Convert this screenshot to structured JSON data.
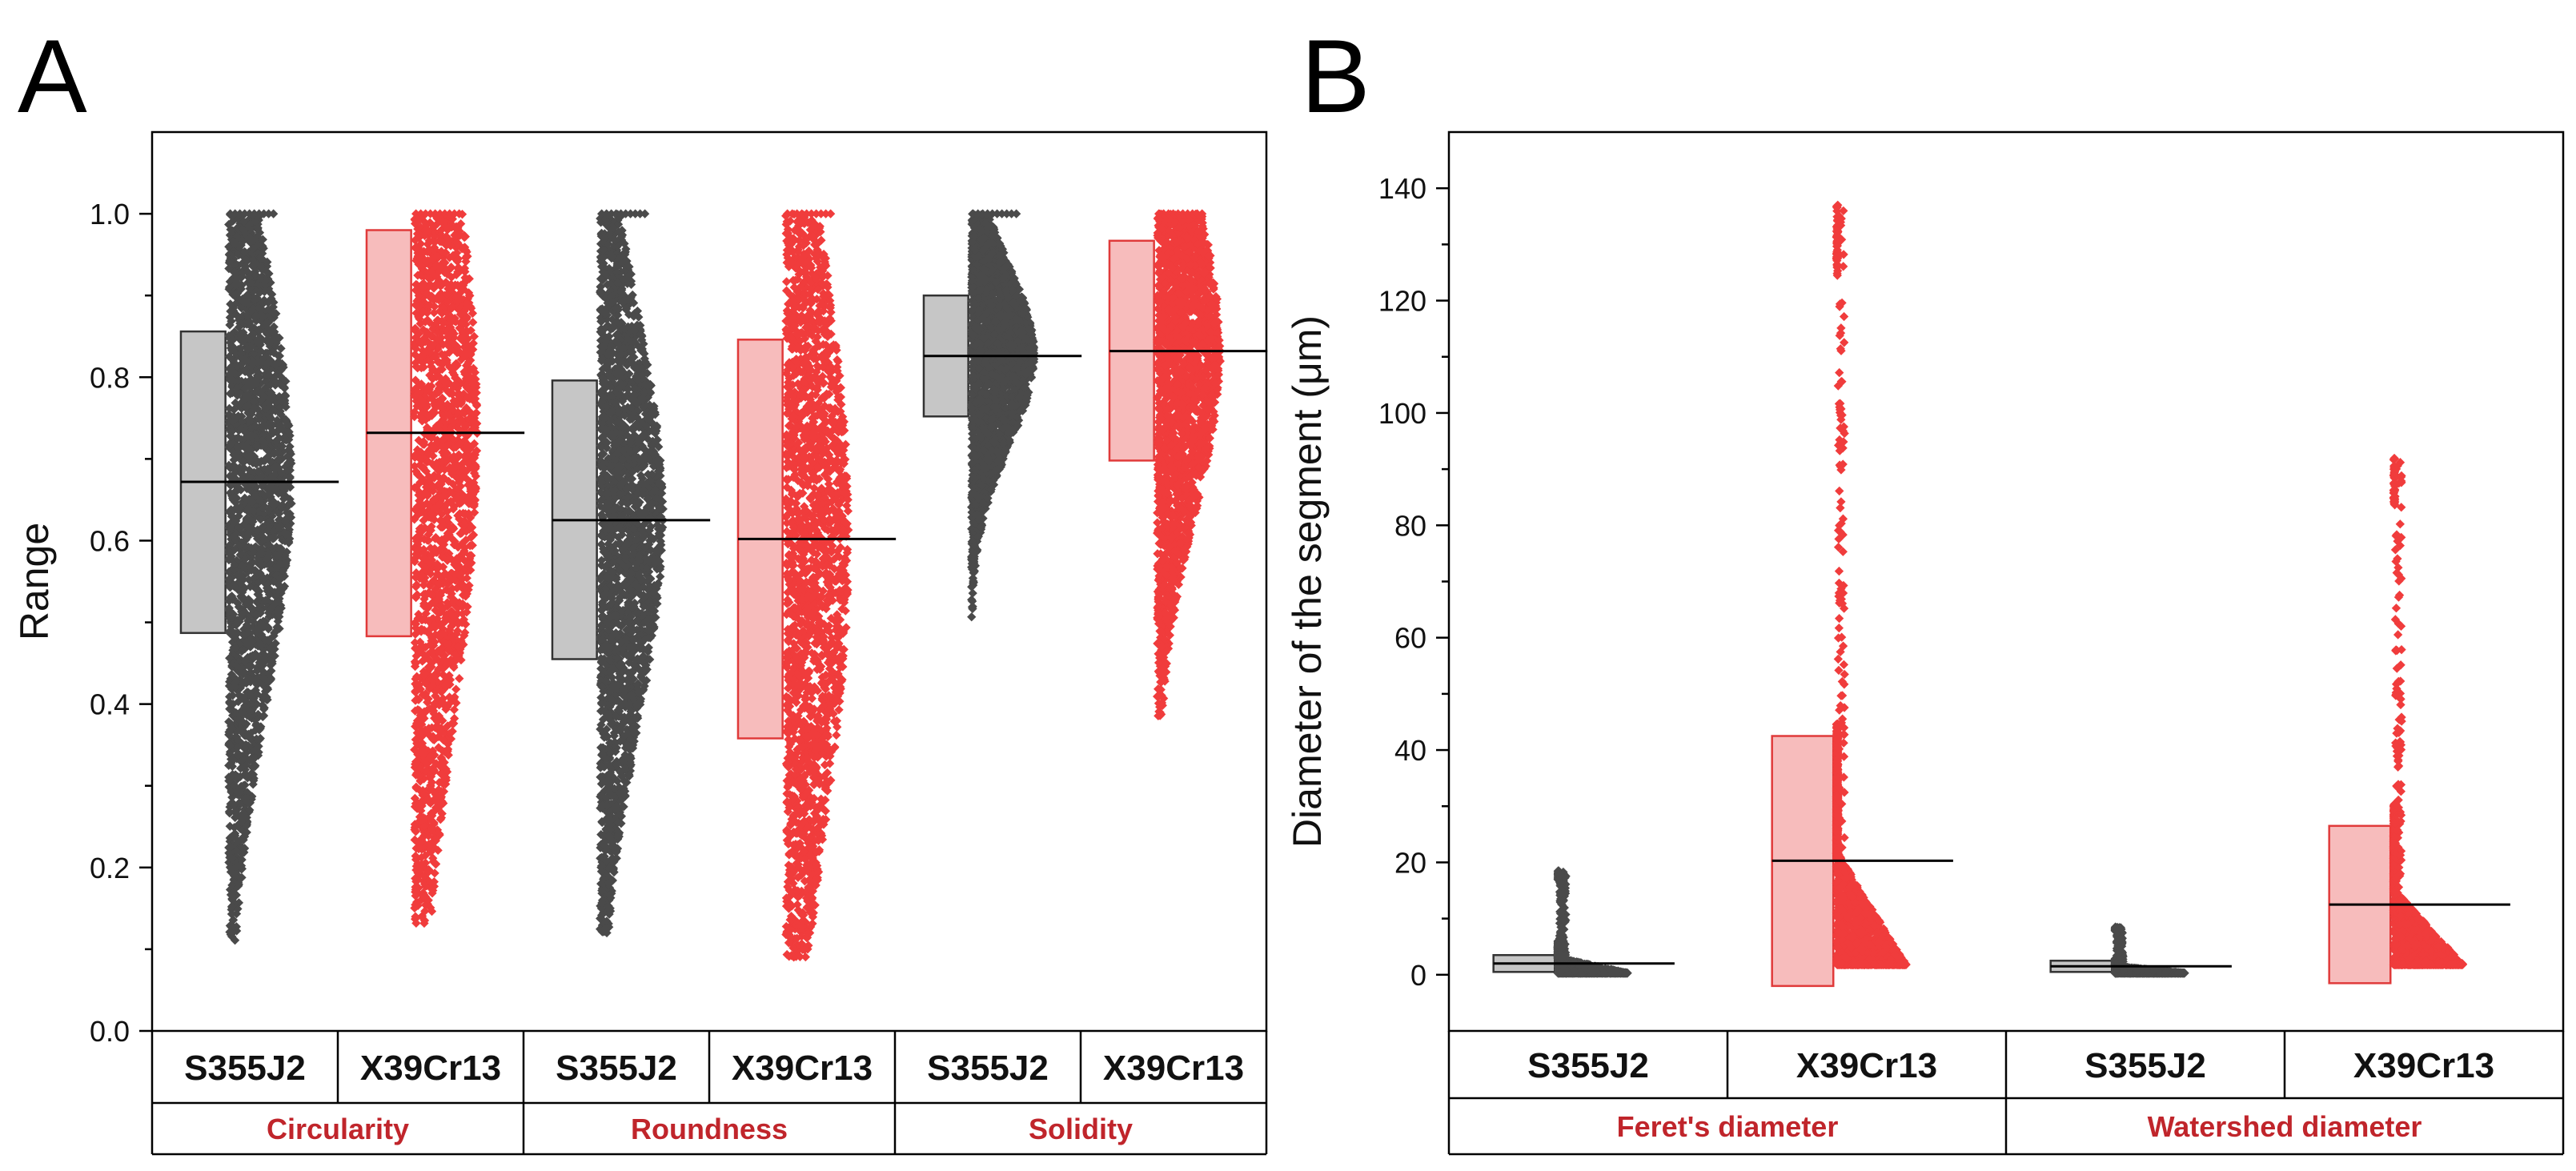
{
  "colors": {
    "S355J2_points": "#4a4a4a",
    "S355J2_box": "#c6c6c6",
    "S355J2_box_stroke": "#333333",
    "X39Cr13_points": "#f03c3c",
    "X39Cr13_box": "#f7bcbc",
    "X39Cr13_box_stroke": "#e03a3a",
    "group_label": "#c0252b"
  },
  "chart_data": [
    {
      "panel": "A",
      "type": "scatter",
      "ylabel": "Range",
      "ylim": [
        0,
        1.1
      ],
      "yticks": [
        "0.0",
        "0.2",
        "0.4",
        "0.6",
        "0.8",
        "1.0"
      ],
      "groups": [
        "Circularity",
        "Roundness",
        "Solidity"
      ],
      "categories": [
        "S355J2",
        "X39Cr13",
        "S355J2",
        "X39Cr13",
        "S355J2",
        "X39Cr13"
      ],
      "series": [
        {
          "group": "Circularity",
          "category": "S355J2",
          "color": "gray",
          "box_low": 0.487,
          "box_high": 0.856,
          "mean": 0.672,
          "min": 0.11,
          "max": 1.0
        },
        {
          "group": "Circularity",
          "category": "X39Cr13",
          "color": "red",
          "box_low": 0.483,
          "box_high": 0.98,
          "mean": 0.732,
          "min": 0.13,
          "max": 1.0
        },
        {
          "group": "Roundness",
          "category": "S355J2",
          "color": "gray",
          "box_low": 0.455,
          "box_high": 0.796,
          "mean": 0.625,
          "min": 0.12,
          "max": 1.0
        },
        {
          "group": "Roundness",
          "category": "X39Cr13",
          "color": "red",
          "box_low": 0.358,
          "box_high": 0.846,
          "mean": 0.602,
          "min": 0.09,
          "max": 1.0
        },
        {
          "group": "Solidity",
          "category": "S355J2",
          "color": "gray",
          "box_low": 0.752,
          "box_high": 0.9,
          "mean": 0.826,
          "min": 0.455,
          "max": 1.0
        },
        {
          "group": "Solidity",
          "category": "X39Cr13",
          "color": "red",
          "box_low": 0.698,
          "box_high": 0.967,
          "mean": 0.832,
          "min": 0.385,
          "max": 1.0
        }
      ]
    },
    {
      "panel": "B",
      "type": "scatter",
      "ylabel": "Diameter of the segment (μm)",
      "ylim": [
        -10,
        150
      ],
      "yticks": [
        "0",
        "20",
        "40",
        "60",
        "80",
        "100",
        "120",
        "140"
      ],
      "groups": [
        "Feret's diameter",
        "Watershed diameter"
      ],
      "categories": [
        "S355J2",
        "X39Cr13",
        "S355J2",
        "X39Cr13"
      ],
      "series": [
        {
          "group": "Feret's diameter",
          "category": "S355J2",
          "color": "gray",
          "box_low": 0.5,
          "box_high": 3.5,
          "mean": 2.0,
          "min": 0.3,
          "max": 18.5
        },
        {
          "group": "Feret's diameter",
          "category": "X39Cr13",
          "color": "red",
          "box_low": -2.0,
          "box_high": 42.5,
          "mean": 20.3,
          "min": 1.8,
          "max": 137
        },
        {
          "group": "Watershed diameter",
          "category": "S355J2",
          "color": "gray",
          "box_low": 0.5,
          "box_high": 2.5,
          "mean": 1.5,
          "min": 0.3,
          "max": 8.5
        },
        {
          "group": "Watershed diameter",
          "category": "X39Cr13",
          "color": "red",
          "box_low": -1.5,
          "box_high": 26.5,
          "mean": 12.5,
          "min": 1.8,
          "max": 92
        }
      ]
    }
  ]
}
